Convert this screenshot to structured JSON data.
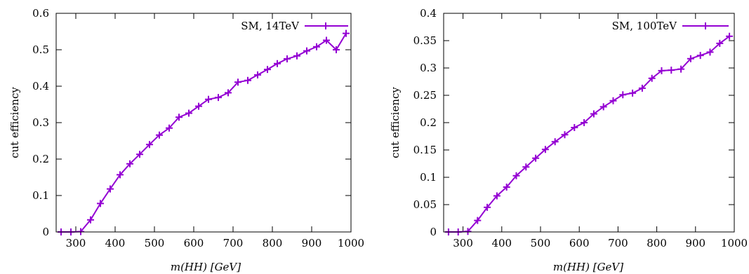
{
  "charts": [
    {
      "xlabel": "m(HH) [GeV]",
      "ylabel": "cut efficiency",
      "legend": "SM, 14TeV"
    },
    {
      "xlabel": "m(HH) [GeV]",
      "ylabel": "cut efficiency",
      "legend": "SM, 100TeV"
    }
  ],
  "chart_data": [
    {
      "type": "line",
      "title": "",
      "xlabel": "m(HH) [GeV]",
      "ylabel": "cut efficiency",
      "xlim": [
        250,
        1000
      ],
      "ylim": [
        0,
        0.6
      ],
      "xticks": [
        300,
        400,
        500,
        600,
        700,
        800,
        900,
        1000
      ],
      "yticks": [
        0,
        0.1,
        0.2,
        0.3,
        0.4,
        0.5,
        0.6
      ],
      "legend_position": "top-right",
      "grid": false,
      "color": "#9400d3",
      "series": [
        {
          "name": "SM, 14TeV",
          "x": [
            262.5,
            287.5,
            312.5,
            337.5,
            362.5,
            387.5,
            412.5,
            437.5,
            462.5,
            487.5,
            512.5,
            537.5,
            562.5,
            587.5,
            612.5,
            637.5,
            662.5,
            687.5,
            712.5,
            737.5,
            762.5,
            787.5,
            812.5,
            837.5,
            862.5,
            887.5,
            912.5,
            937.5,
            962.5,
            987.5
          ],
          "y": [
            0,
            0,
            0.001,
            0.033,
            0.078,
            0.118,
            0.157,
            0.187,
            0.213,
            0.24,
            0.266,
            0.285,
            0.315,
            0.326,
            0.345,
            0.364,
            0.369,
            0.382,
            0.411,
            0.416,
            0.431,
            0.446,
            0.462,
            0.475,
            0.483,
            0.497,
            0.508,
            0.526,
            0.5,
            0.545
          ]
        }
      ]
    },
    {
      "type": "line",
      "title": "",
      "xlabel": "m(HH) [GeV]",
      "ylabel": "cut efficiency",
      "xlim": [
        250,
        1000
      ],
      "ylim": [
        0,
        0.4
      ],
      "xticks": [
        300,
        400,
        500,
        600,
        700,
        800,
        900,
        1000
      ],
      "yticks": [
        0,
        0.05,
        0.1,
        0.15,
        0.2,
        0.25,
        0.3,
        0.35,
        0.4
      ],
      "legend_position": "top-right",
      "grid": false,
      "color": "#9400d3",
      "series": [
        {
          "name": "SM, 100TeV",
          "x": [
            262.5,
            287.5,
            312.5,
            337.5,
            362.5,
            387.5,
            412.5,
            437.5,
            462.5,
            487.5,
            512.5,
            537.5,
            562.5,
            587.5,
            612.5,
            637.5,
            662.5,
            687.5,
            712.5,
            737.5,
            762.5,
            787.5,
            812.5,
            837.5,
            862.5,
            887.5,
            912.5,
            937.5,
            962.5,
            987.5
          ],
          "y": [
            0,
            0,
            0.001,
            0.021,
            0.045,
            0.066,
            0.082,
            0.103,
            0.119,
            0.135,
            0.151,
            0.165,
            0.178,
            0.191,
            0.2,
            0.216,
            0.229,
            0.24,
            0.251,
            0.254,
            0.263,
            0.281,
            0.295,
            0.296,
            0.298,
            0.317,
            0.323,
            0.329,
            0.345,
            0.358
          ]
        }
      ]
    }
  ]
}
